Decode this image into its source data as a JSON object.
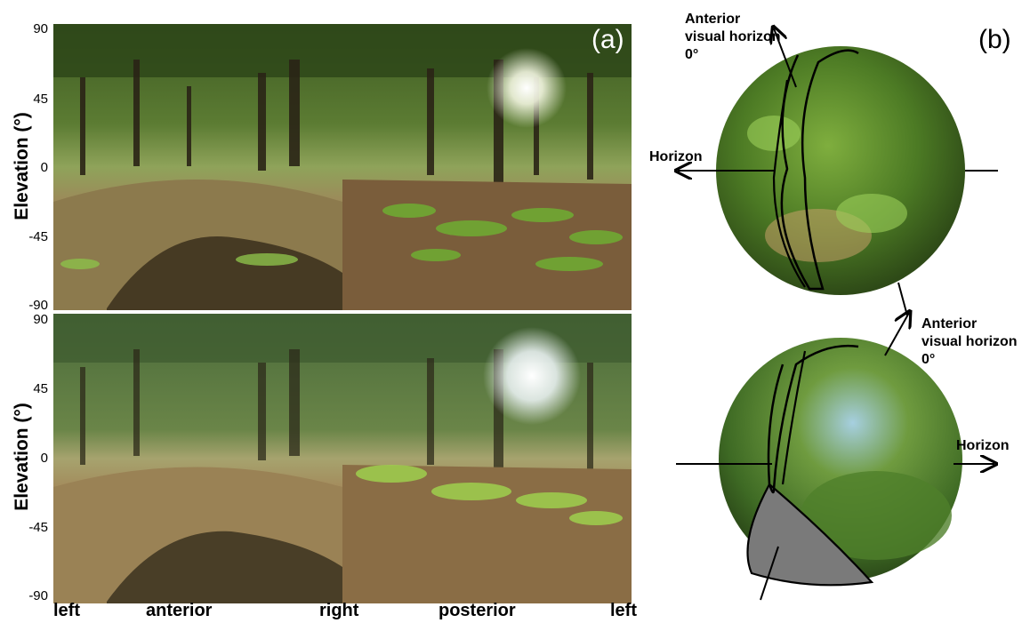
{
  "panel_a": {
    "label": "(a)",
    "y_axis_label": "Elevation (°)",
    "y_ticks_top": [
      "90",
      "45",
      "0",
      "-45",
      "-90"
    ],
    "y_ticks_bottom": [
      "90",
      "45",
      "0",
      "-45",
      "-90"
    ],
    "x_labels": [
      "left",
      "anterior",
      "right",
      "posterior",
      "left"
    ]
  },
  "panel_b": {
    "label": "(b)",
    "top_sphere": {
      "axis_label": "Horizon",
      "contour_label": "Anterior visual horizon 0°"
    },
    "bottom_sphere": {
      "axis_label": "Horizon",
      "contour_label": "Anterior visual horizon 0°"
    }
  },
  "colors": {
    "canopy": "#2f4a1c",
    "foliage": "#5b8a2e",
    "leaf_litter": "#8a6a43",
    "sky": "#dfe9e6"
  }
}
